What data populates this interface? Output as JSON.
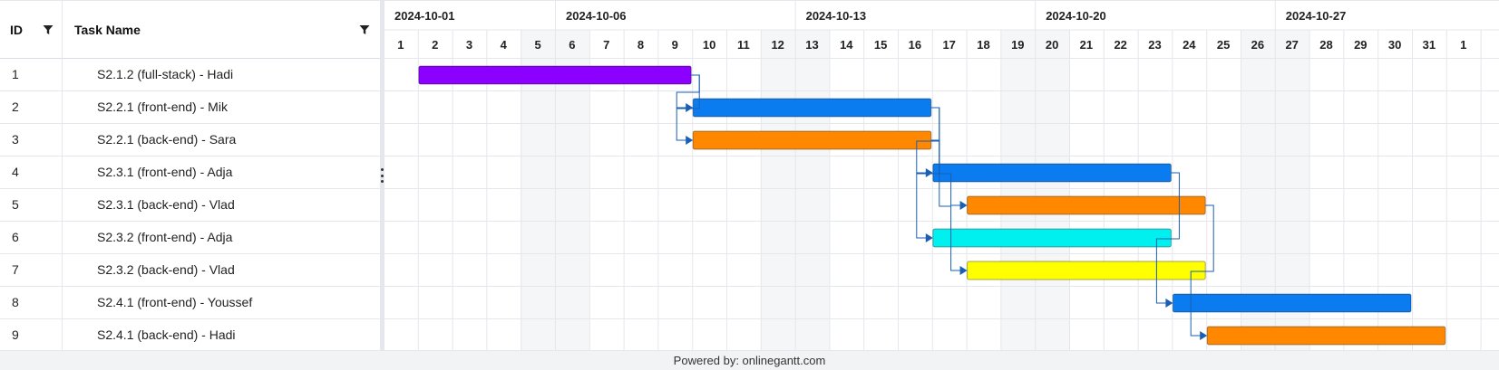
{
  "grid": {
    "header": {
      "id_label": "ID",
      "name_label": "Task Name"
    },
    "rows": [
      {
        "id": "1",
        "name": "S2.1.2 (full-stack) - Hadi"
      },
      {
        "id": "2",
        "name": "S2.2.1 (front-end) - Mik"
      },
      {
        "id": "3",
        "name": "S2.2.1 (back-end) - Sara"
      },
      {
        "id": "4",
        "name": "S2.3.1 (front-end) - Adja"
      },
      {
        "id": "5",
        "name": "S2.3.1 (back-end) - Vlad"
      },
      {
        "id": "6",
        "name": "S2.3.2 (front-end) - Adja"
      },
      {
        "id": "7",
        "name": "S2.3.2 (back-end) - Vlad"
      },
      {
        "id": "8",
        "name": "S2.4.1 (front-end) - Youssef"
      },
      {
        "id": "9",
        "name": "S2.4.1 (back-end) - Hadi"
      }
    ]
  },
  "timeline": {
    "weeks": [
      {
        "label": "2024-10-01",
        "start_day": 1
      },
      {
        "label": "2024-10-06",
        "start_day": 6
      },
      {
        "label": "2024-10-13",
        "start_day": 13
      },
      {
        "label": "2024-10-20",
        "start_day": 20
      },
      {
        "label": "2024-10-27",
        "start_day": 27
      }
    ],
    "days": [
      "1",
      "2",
      "3",
      "4",
      "5",
      "6",
      "7",
      "8",
      "9",
      "10",
      "11",
      "12",
      "13",
      "14",
      "15",
      "16",
      "17",
      "18",
      "19",
      "20",
      "21",
      "22",
      "23",
      "24",
      "25",
      "26",
      "27",
      "28",
      "29",
      "30",
      "31",
      "1"
    ],
    "weekend_days": [
      "5",
      "6",
      "12",
      "13",
      "19",
      "20",
      "26",
      "27"
    ]
  },
  "tasks": [
    {
      "row": 1,
      "start": "2024-10-02",
      "end": "2024-10-09",
      "color": "#8b00ff"
    },
    {
      "row": 2,
      "start": "2024-10-10",
      "end": "2024-10-16",
      "color": "#0a7cf0"
    },
    {
      "row": 3,
      "start": "2024-10-10",
      "end": "2024-10-16",
      "color": "#ff8800"
    },
    {
      "row": 4,
      "start": "2024-10-17",
      "end": "2024-10-23",
      "color": "#0a7cf0"
    },
    {
      "row": 5,
      "start": "2024-10-18",
      "end": "2024-10-24",
      "color": "#ff8800"
    },
    {
      "row": 6,
      "start": "2024-10-17",
      "end": "2024-10-23",
      "color": "#00f0f0"
    },
    {
      "row": 7,
      "start": "2024-10-18",
      "end": "2024-10-24",
      "color": "#ffff00"
    },
    {
      "row": 8,
      "start": "2024-10-24",
      "end": "2024-10-30",
      "color": "#0a7cf0"
    },
    {
      "row": 9,
      "start": "2024-10-25",
      "end": "2024-10-31",
      "color": "#ff8800"
    }
  ],
  "dependencies": [
    {
      "from": 1,
      "to": 2
    },
    {
      "from": 1,
      "to": 3
    },
    {
      "from": 2,
      "to": 4
    },
    {
      "from": 3,
      "to": 5
    },
    {
      "from": 2,
      "to": 6
    },
    {
      "from": 3,
      "to": 7
    },
    {
      "from": 4,
      "to": 8
    },
    {
      "from": 5,
      "to": 9
    }
  ],
  "colors": {
    "dependency": "#1a5fb4",
    "grid_line": "#e4e7eb",
    "weekend": "#f5f6f8"
  },
  "footer": {
    "text": "Powered by: onlinegantt.com"
  }
}
